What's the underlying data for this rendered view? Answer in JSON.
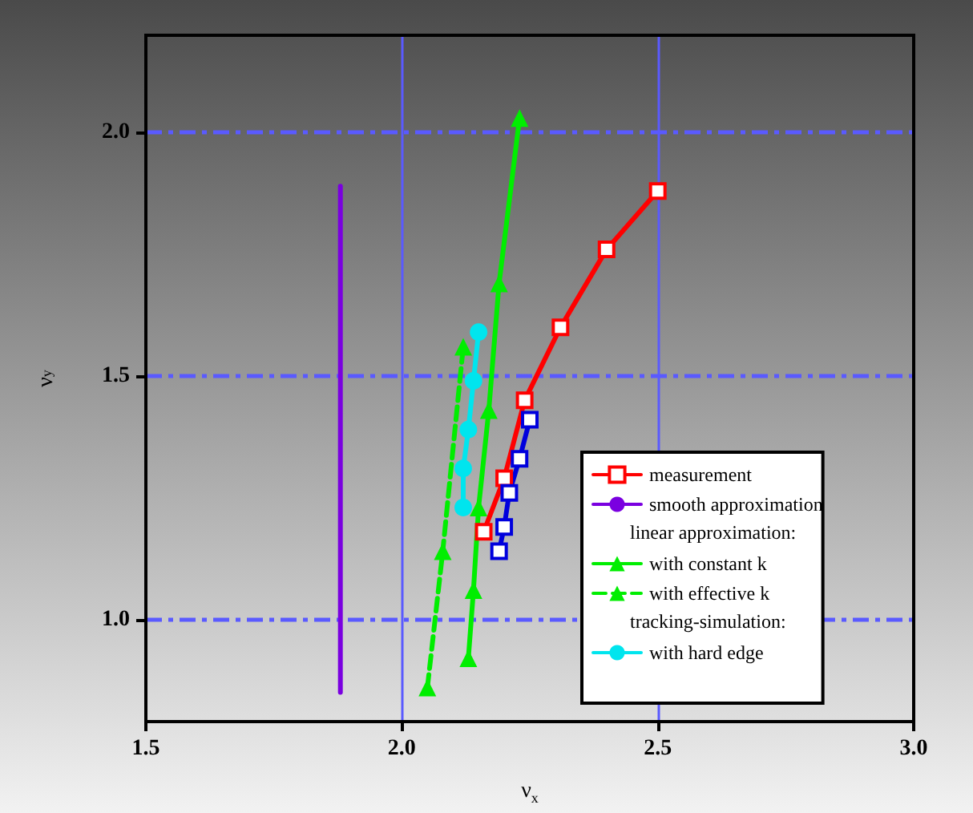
{
  "chart_data": {
    "type": "line",
    "xlabel": "ν$_{x}$",
    "ylabel": "ν$_{y}$",
    "xlim": [
      1.5,
      3.0
    ],
    "ylim": [
      0.79,
      2.2
    ],
    "xticks": [
      {
        "value": 1.5,
        "label": "1.5"
      },
      {
        "value": 2,
        "label": "2.0"
      },
      {
        "value": 2.5,
        "label": "2.5"
      },
      {
        "value": 3,
        "label": "3.0"
      }
    ],
    "yticks": [
      {
        "value": 1,
        "label": "1.0"
      },
      {
        "value": 1.5,
        "label": "1.5"
      },
      {
        "value": 2,
        "label": "2.0"
      }
    ],
    "grid": true,
    "legend": "bottom right",
    "annotations": [
      "linear approximation:",
      "tracking-simulation:"
    ],
    "series": [
      {
        "name": "measurement",
        "color": "#ff0000",
        "marker": "square",
        "line_style": "solid",
        "x": [
          2.16,
          2.2,
          2.24,
          2.31,
          2.4,
          2.5
        ],
        "values": [
          1.18,
          1.29,
          1.45,
          1.6,
          1.76,
          1.88
        ]
      },
      {
        "name": "smooth approximation",
        "color": "#7a00e0",
        "marker": "none",
        "line_style": "solid",
        "x": [
          1.88,
          1.88,
          1.88
        ],
        "values": [
          0.85,
          1.5,
          1.89
        ]
      },
      {
        "name": "with constant k",
        "color": "#00ee00",
        "marker": "triangle",
        "line_style": "solid",
        "x": [
          2.13,
          2.14,
          2.15,
          2.17,
          2.19,
          2.23
        ],
        "values": [
          0.92,
          1.06,
          1.23,
          1.43,
          1.69,
          2.03
        ]
      },
      {
        "name": "with effective k",
        "color": "#00ee00",
        "marker": "triangle",
        "line_style": "dashed",
        "x": [
          2.05,
          2.08,
          2.12
        ],
        "values": [
          0.86,
          1.14,
          1.56
        ]
      },
      {
        "name": "with hard edge",
        "color": "#00e5ee",
        "marker": "circle",
        "line_style": "solid",
        "x": [
          2.12,
          2.12,
          2.13,
          2.14,
          2.15
        ],
        "values": [
          1.23,
          1.31,
          1.39,
          1.49,
          1.59
        ]
      },
      {
        "color": "#0000dd",
        "marker": "square",
        "line_style": "solid",
        "x": [
          2.19,
          2.2,
          2.21,
          2.23,
          2.25
        ],
        "values": [
          1.14,
          1.19,
          1.26,
          1.33,
          1.41
        ]
      }
    ]
  }
}
